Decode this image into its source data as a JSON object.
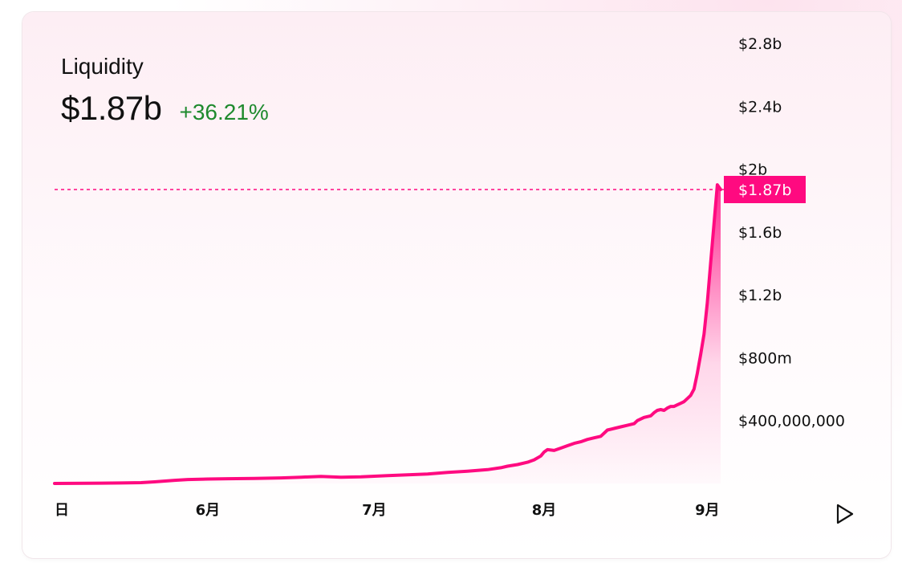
{
  "card": {
    "title": "Liquidity",
    "value": "$1.87b",
    "change": "+36.21%"
  },
  "colors": {
    "line": "#ff0a80",
    "label_bg": "#ff0a80",
    "positive": "#1f8a2e"
  },
  "icons": {
    "play": "play-icon"
  },
  "chart_data": {
    "type": "area",
    "title": "",
    "xlabel": "",
    "ylabel": "",
    "y_tick_labels": [
      "$400,000,000",
      "$800m",
      "$1.2b",
      "$1.6b",
      "$2b",
      "$2.4b",
      "$2.8b"
    ],
    "y_tick_values": [
      400000000,
      800000000,
      1200000000,
      1600000000,
      2000000000,
      2400000000,
      2800000000
    ],
    "ylim": [
      0,
      2800000000
    ],
    "x_tick_labels": [
      "日",
      "6月",
      "7月",
      "8月",
      "9月"
    ],
    "x_tick_positions": [
      0.0,
      0.23,
      0.48,
      0.735,
      0.98
    ],
    "current_value_label": "$1.87b",
    "current_value": 1870000000,
    "series": [
      {
        "x": [
          0.0,
          0.05,
          0.1,
          0.13,
          0.15,
          0.18,
          0.2,
          0.23,
          0.26,
          0.3,
          0.34,
          0.37,
          0.4,
          0.43,
          0.46,
          0.5,
          0.53,
          0.56,
          0.59,
          0.62,
          0.65,
          0.67,
          0.68,
          0.695,
          0.71,
          0.72,
          0.73,
          0.735,
          0.74,
          0.75,
          0.76,
          0.77,
          0.78,
          0.79,
          0.8,
          0.81,
          0.82,
          0.825,
          0.83,
          0.84,
          0.85,
          0.86,
          0.87,
          0.875,
          0.885,
          0.895,
          0.9,
          0.905,
          0.91,
          0.915,
          0.92,
          0.925,
          0.93,
          0.935,
          0.94,
          0.945,
          0.95,
          0.955,
          0.96,
          0.965,
          0.97,
          0.975,
          0.98,
          0.985,
          0.99,
          0.995,
          1.0
        ],
        "values": [
          0,
          1000000,
          3000000,
          5000000,
          10000000,
          20000000,
          25000000,
          28000000,
          30000000,
          32000000,
          35000000,
          40000000,
          45000000,
          40000000,
          42000000,
          50000000,
          55000000,
          60000000,
          70000000,
          78000000,
          88000000,
          100000000,
          110000000,
          120000000,
          135000000,
          150000000,
          175000000,
          200000000,
          215000000,
          210000000,
          225000000,
          240000000,
          255000000,
          265000000,
          280000000,
          290000000,
          300000000,
          320000000,
          340000000,
          350000000,
          360000000,
          370000000,
          380000000,
          400000000,
          420000000,
          430000000,
          450000000,
          465000000,
          470000000,
          465000000,
          480000000,
          490000000,
          490000000,
          500000000,
          510000000,
          520000000,
          540000000,
          560000000,
          600000000,
          700000000,
          820000000,
          950000000,
          1150000000,
          1400000000,
          1650000000,
          1900000000,
          1870000000
        ]
      }
    ]
  }
}
